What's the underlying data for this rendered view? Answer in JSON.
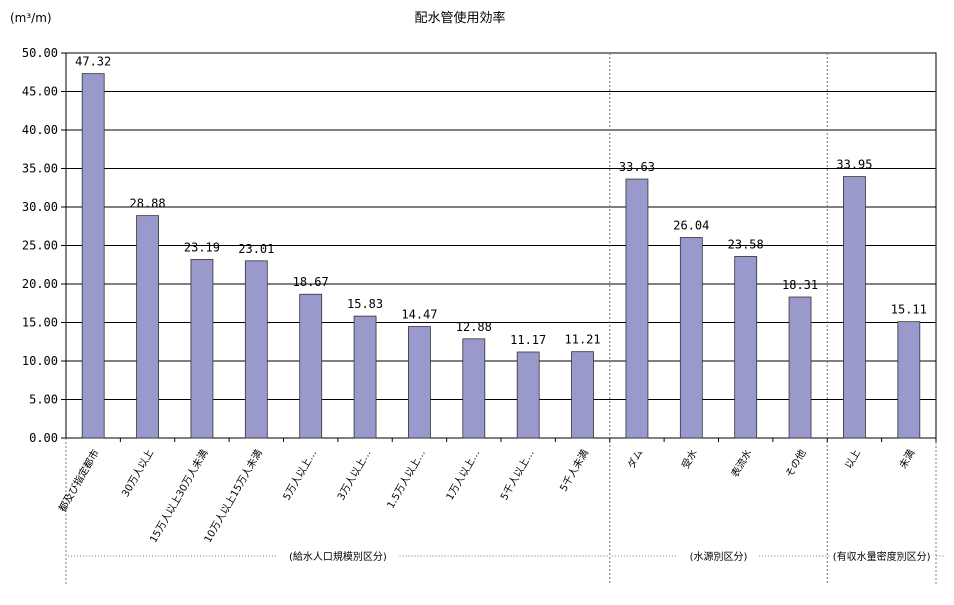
{
  "chart_data": {
    "type": "bar",
    "title": "配水管使用効率",
    "ylabel": "(m³/m)",
    "ylim": [
      0,
      50
    ],
    "yticks": [
      "0.00",
      "5.00",
      "10.00",
      "15.00",
      "20.00",
      "25.00",
      "30.00",
      "35.00",
      "40.00",
      "45.00",
      "50.00"
    ],
    "grid": true,
    "bar_color": "#9999cc",
    "categories": [
      "都及び指定都市",
      "30万人以上",
      "15万人以上30万人未満",
      "10万人以上15万人未満",
      "5万人以上…",
      "3万人以上…",
      "1.5万人以上…",
      "1万人以上…",
      "5千人以上…",
      "5千人未満",
      "ダム",
      "受水",
      "表流水",
      "その他",
      "以上",
      "未満"
    ],
    "values": [
      47.32,
      28.88,
      23.19,
      23.01,
      18.67,
      15.83,
      14.47,
      12.88,
      11.17,
      11.21,
      33.63,
      26.04,
      23.58,
      18.31,
      33.95,
      15.11
    ],
    "value_labels": [
      "47.32",
      "28.88",
      "23.19",
      "23.01",
      "18.67",
      "15.83",
      "14.47",
      "12.88",
      "11.17",
      "11.21",
      "33.63",
      "26.04",
      "23.58",
      "18.31",
      "33.95",
      "15.11"
    ],
    "groups": [
      {
        "label": "(給水人口規模別区分)",
        "count": 10
      },
      {
        "label": "(水源別区分)",
        "count": 4
      },
      {
        "label": "(有収水量密度別区分)",
        "count": 2
      }
    ]
  }
}
